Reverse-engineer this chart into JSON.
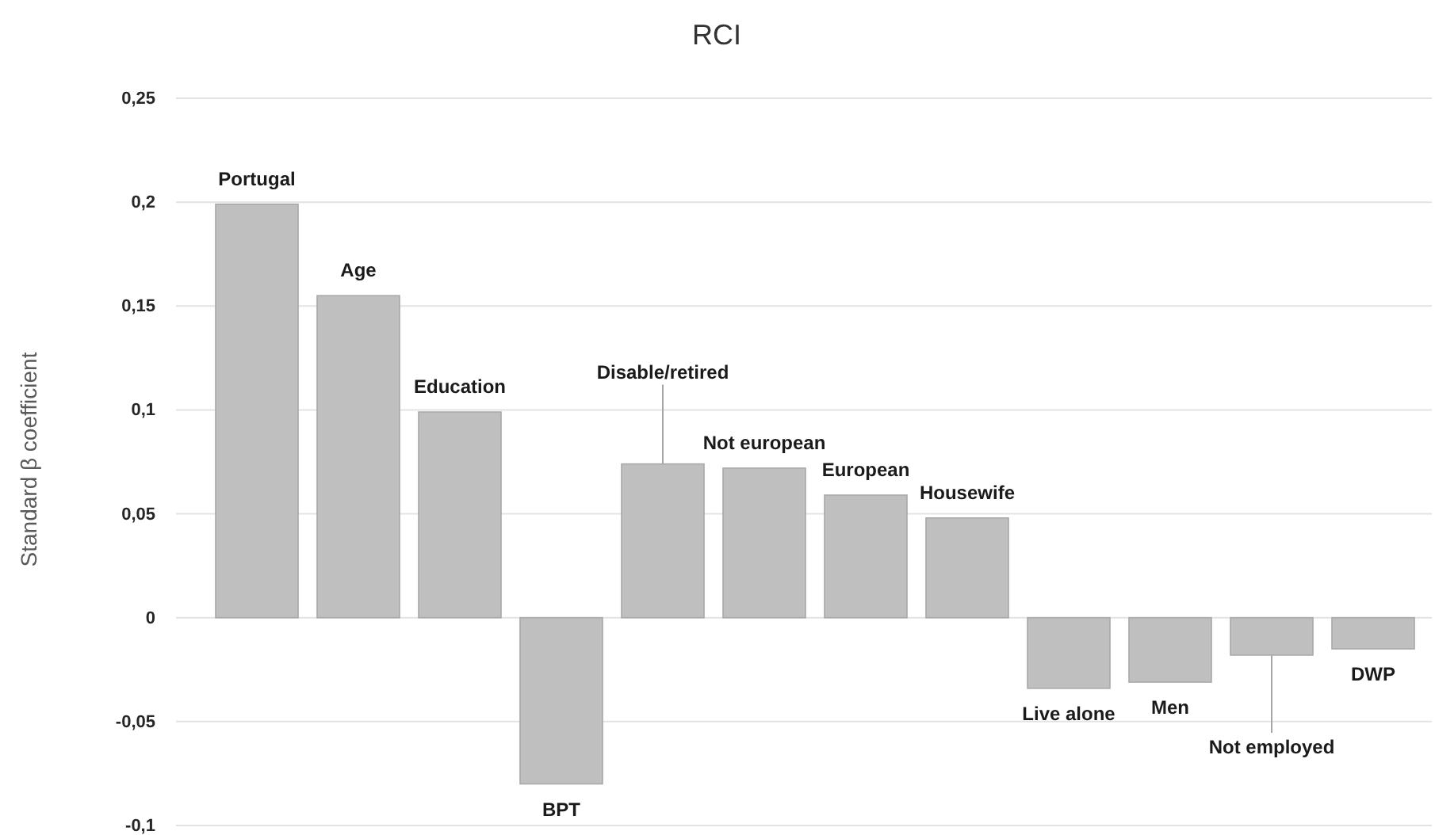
{
  "chart_data": {
    "type": "bar",
    "title": "RCI",
    "ylabel": "Standard β coefficient",
    "categories": [
      "Portugal",
      "Age",
      "Education",
      "BPT",
      "Disable/retired",
      "Not european",
      "European",
      "Housewife",
      "Live alone",
      "Men",
      "Not employed",
      "DWP"
    ],
    "values": [
      0.199,
      0.155,
      0.099,
      -0.08,
      0.074,
      0.072,
      0.059,
      0.048,
      -0.034,
      -0.031,
      -0.018,
      -0.015
    ],
    "color": "#bfbfbf",
    "ylim": [
      -0.1,
      0.25
    ],
    "yticks": [
      {
        "value": -0.1,
        "label": "-0,1"
      },
      {
        "value": -0.05,
        "label": "-0,05"
      },
      0,
      {
        "value": 0.05,
        "label": "0,05"
      },
      {
        "value": 0.1,
        "label": "0,1"
      },
      {
        "value": 0.15,
        "label": "0,15"
      },
      {
        "value": 0.2,
        "label": "0,2"
      },
      {
        "value": 0.25,
        "label": "0,25"
      }
    ],
    "grid": "y",
    "tick_labels": "y"
  }
}
